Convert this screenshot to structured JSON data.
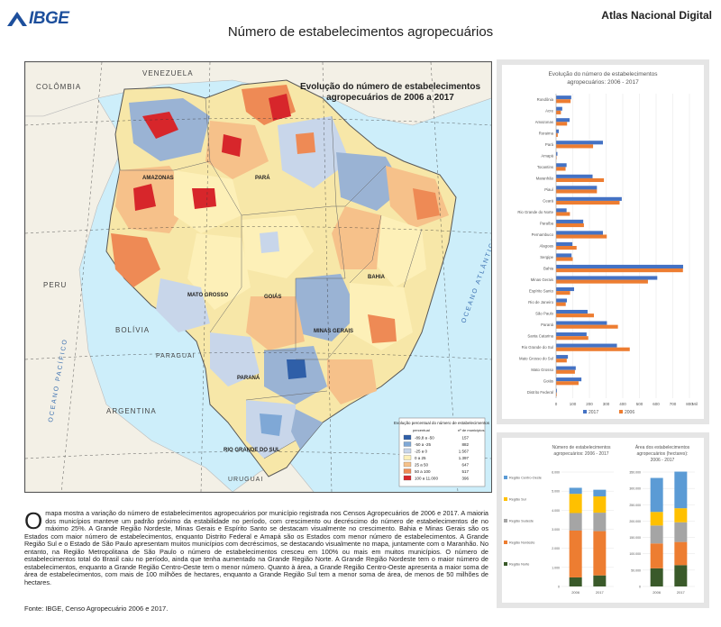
{
  "header": {
    "logo_text": "IBGE",
    "atlas_title": "Atlas Nacional Digital",
    "map_title": "Número de estabelecimentos agropecuários"
  },
  "map": {
    "inset_title_line1": "Evolução do número de estabelecimentos",
    "inset_title_line2": "agropecuários de 2006 a 2017",
    "ocean_label": "OCEANO ATLÂNTICO",
    "pacific_label": "OCEANO PACÍFICO",
    "countries": [
      "COLÔMBIA",
      "VENEZUELA",
      "PERU",
      "BOLÍVIA",
      "PARAGUAI",
      "ARGENTINA",
      "URUGUAI"
    ],
    "states": [
      "AMAZONAS",
      "PARÁ",
      "MATO GROSSO",
      "GOIÁS",
      "BAHIA",
      "MINAS GERAIS",
      "PARANÁ",
      "RIO GRANDE DO SUL"
    ],
    "legend": {
      "title": "Evolução percentual do número de estabelecimentos",
      "col_class": "percentual",
      "col_count": "nº de municípios",
      "classes": [
        {
          "label": "-89,8 a -50",
          "count": "157",
          "color": "#2f5fa8"
        },
        {
          "label": "-50 a -25",
          "count": "882",
          "color": "#7fa8d6"
        },
        {
          "label": "-25 a 0",
          "count": "1.567",
          "color": "#c8d6ea"
        },
        {
          "label": "0 a 25",
          "count": "1.397",
          "color": "#fdf0b8"
        },
        {
          "label": "25 a 50",
          "count": "647",
          "color": "#f6c18a"
        },
        {
          "label": "50 a 100",
          "count": "517",
          "color": "#ee8a55"
        },
        {
          "label": "100 a 11.000",
          "count": "396",
          "color": "#d7262b"
        }
      ]
    }
  },
  "chart_data": [
    {
      "type": "bar",
      "title": "Evolução do número de estabelecimentos agropecuários: 2006 - 2017",
      "categories": [
        "Rondônia",
        "Acre",
        "Amazonas",
        "Roraima",
        "Pará",
        "Amapá",
        "Tocantins",
        "Maranhão",
        "Piauí",
        "Ceará",
        "Rio Grande do Norte",
        "Paraíba",
        "Pernambuco",
        "Alagoas",
        "Sergipe",
        "Bahia",
        "Minas Gerais",
        "Espírito Santo",
        "Rio de Janeiro",
        "São Paulo",
        "Paraná",
        "Santa Catarina",
        "Rio Grande do Sul",
        "Mato Grosso do Sul",
        "Mato Grosso",
        "Goiás",
        "Distrito Federal"
      ],
      "series": [
        {
          "name": "2017",
          "color": "#4472c4",
          "values": [
            91,
            37,
            81,
            16,
            281,
            8,
            63,
            219,
            245,
            394,
            63,
            163,
            281,
            98,
            93,
            762,
            607,
            108,
            65,
            189,
            305,
            183,
            365,
            71,
            118,
            152,
            5
          ]
        },
        {
          "name": "2006",
          "color": "#ed7d31",
          "values": [
            87,
            29,
            66,
            10,
            222,
            3,
            57,
            287,
            245,
            381,
            83,
            167,
            304,
            123,
            100,
            761,
            551,
            84,
            58,
            227,
            371,
            193,
            442,
            64,
            113,
            135,
            4
          ]
        }
      ],
      "xticks": [
        "0",
        "100",
        "200",
        "300",
        "400",
        "500",
        "600",
        "700",
        "800"
      ],
      "xlim": [
        0,
        800
      ],
      "xlabel": "Mil",
      "legend": [
        "2017",
        "2006"
      ]
    },
    {
      "type": "bar",
      "stacked": true,
      "title": "Número de estabelecimentos agropecuários: 2006 - 2017",
      "categories": [
        "2006",
        "2017"
      ],
      "yticks": [
        "0",
        "1.000",
        "2.000",
        "3.000",
        "4.000",
        "5.000",
        "6.000"
      ],
      "ylim": [
        0,
        6000
      ],
      "series": [
        {
          "name": "Região Norte",
          "color": "#3a5a2a",
          "values": [
            475,
            580
          ]
        },
        {
          "name": "Região Nordeste",
          "color": "#ed7d31",
          "values": [
            2454,
            2322
          ]
        },
        {
          "name": "Região Sudeste",
          "color": "#a5a5a5",
          "values": [
            922,
            969
          ]
        },
        {
          "name": "Região Sul",
          "color": "#ffc000",
          "values": [
            1006,
            853
          ]
        },
        {
          "name": "Região Centro-Oeste",
          "color": "#5b9bd5",
          "values": [
            318,
            348
          ]
        }
      ],
      "legend": [
        "Região Centro-Oeste",
        "Região Sul",
        "Região Sudeste",
        "Região Nordeste",
        "Região Norte"
      ]
    },
    {
      "type": "bar",
      "stacked": true,
      "title": "Área dos estabelecimentos agropecuários (hectares): 2006 - 2017",
      "categories": [
        "2006",
        "2017"
      ],
      "yticks": [
        "0",
        "50.000",
        "100.000",
        "150.000",
        "200.000",
        "250.000",
        "300.000",
        "350.000"
      ],
      "ylim": [
        0,
        350000
      ],
      "series": [
        {
          "name": "Região Norte",
          "color": "#3a5a2a",
          "values": [
            55500,
            65200
          ]
        },
        {
          "name": "Região Nordeste",
          "color": "#ed7d31",
          "values": [
            76100,
            70900
          ]
        },
        {
          "name": "Região Sudeste",
          "color": "#a5a5a5",
          "values": [
            54900,
            60300
          ]
        },
        {
          "name": "Região Sul",
          "color": "#ffc000",
          "values": [
            41500,
            42900
          ]
        },
        {
          "name": "Região Centro-Oeste",
          "color": "#5b9bd5",
          "values": [
            104000,
            112000
          ]
        }
      ]
    }
  ],
  "description": {
    "dropcap": "O",
    "text": "mapa mostra a variação do número de estabelecimentos agropecuários por município registrada nos Censos Agropecuários de 2006 e 2017. A maioria dos municípios manteve um padrão próximo da estabilidade no período, com crescimento ou decréscimo do número de estabelecimentos de no máximo 25%. A Grande Região Nordeste, Minas Gerais e Espírito Santo se destacam visualmente no crescimento. Bahia e Minas Gerais são os Estados com maior número de estabelecimentos, enquanto Distrito Federal e Amapá são os Estados com menor número de estabelecimentos. A Grande Região Sul e o Estado de São Paulo apresentam muitos municípios com decréscimos, se destacando visualmente no mapa, juntamente com o Maranhão. No entanto, na Região Metropolitana de São Paulo o número de estabelecimentos cresceu em 100% ou mais em muitos municípios. O número de estabelecimentos total do Brasil caiu no período, ainda que tenha aumentado na Grande Região Norte. A Grande Região Nordeste tem o maior número de estabelecimentos, enquanto a Grande Região Centro-Oeste tem o menor número. Quanto à área, a Grande Região Centro-Oeste apresenta a maior soma de área de estabelecimentos, com mais de 100 milhões de hectares, enquanto a Grande Região Sul tem a menor soma de área, de menos de 50 milhões de hectares."
  },
  "source": "Fonte: IBGE, Censo Agropecuário 2006 e 2017."
}
